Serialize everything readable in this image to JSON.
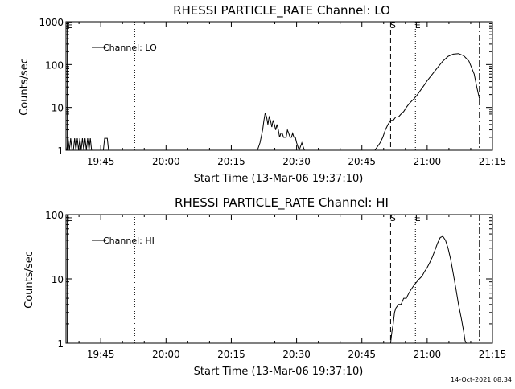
{
  "footer": {
    "timestamp": "14-Oct-2021 08:34"
  },
  "chart_data": [
    {
      "type": "line",
      "title": "RHESSI PARTICLE_RATE Channel: LO",
      "xlabel": "Start Time (13-Mar-06 19:37:10)",
      "ylabel": "Counts/sec",
      "x_unit": "minutes",
      "xlim": [
        19.617,
        21.25
      ],
      "yscale": "log",
      "ylim": [
        1,
        1000
      ],
      "x_ticks": [
        {
          "x": 19.75,
          "label": "19:45"
        },
        {
          "x": 20.0,
          "label": "20:00"
        },
        {
          "x": 20.25,
          "label": "20:15"
        },
        {
          "x": 20.5,
          "label": "20:30"
        },
        {
          "x": 20.75,
          "label": "20:45"
        },
        {
          "x": 21.0,
          "label": "21:00"
        },
        {
          "x": 21.25,
          "label": "21:15"
        }
      ],
      "y_ticks": [
        {
          "y": 1,
          "label": "1"
        },
        {
          "y": 10,
          "label": "10"
        },
        {
          "y": 100,
          "label": "100"
        },
        {
          "y": 1000,
          "label": "1000"
        }
      ],
      "legend": {
        "label": "Channel: LO",
        "position": "top-left"
      },
      "markers": [
        {
          "x": 19.622,
          "style": "solid",
          "label": "E"
        },
        {
          "x": 19.88,
          "style": "dotted",
          "label": ""
        },
        {
          "x": 20.86,
          "style": "dashed",
          "label": "S"
        },
        {
          "x": 20.955,
          "style": "dotted",
          "label": "E"
        },
        {
          "x": 21.2,
          "style": "dashdot",
          "label": ""
        }
      ],
      "series": [
        {
          "name": "Channel: LO",
          "x": [
            19.62,
            19.625,
            19.63,
            19.635,
            19.64,
            19.645,
            19.65,
            19.655,
            19.66,
            19.665,
            19.67,
            19.675,
            19.68,
            19.685,
            19.69,
            19.695,
            19.7,
            19.705,
            19.71,
            19.715,
            19.72,
            19.74,
            19.76,
            19.765,
            19.77,
            19.775,
            19.78,
            19.8,
            19.9,
            20.0,
            20.1,
            20.2,
            20.35,
            20.36,
            20.37,
            20.375,
            20.38,
            20.385,
            20.39,
            20.395,
            20.4,
            20.405,
            20.41,
            20.415,
            20.42,
            20.425,
            20.43,
            20.435,
            20.44,
            20.445,
            20.45,
            20.455,
            20.46,
            20.465,
            20.47,
            20.475,
            20.48,
            20.485,
            20.49,
            20.495,
            20.5,
            20.51,
            20.52,
            20.53,
            20.6,
            20.7,
            20.8,
            20.82,
            20.83,
            20.84,
            20.85,
            20.86,
            20.87,
            20.88,
            20.89,
            20.9,
            20.91,
            20.92,
            20.93,
            20.94,
            20.95,
            20.96,
            20.97,
            20.98,
            20.99,
            21.0,
            21.02,
            21.04,
            21.06,
            21.08,
            21.1,
            21.12,
            21.14,
            21.16,
            21.18,
            21.19,
            21.2
          ],
          "y": [
            1,
            1.9,
            1,
            1.9,
            1,
            1,
            1.9,
            1,
            1.9,
            1,
            1.9,
            1,
            1.9,
            1,
            1.9,
            1,
            1.9,
            1,
            1.9,
            1,
            1,
            1,
            1,
            1.9,
            1.9,
            1.9,
            1,
            1,
            1,
            1,
            1,
            1,
            1,
            1.5,
            3,
            5,
            7.5,
            6,
            4,
            6,
            5,
            3.5,
            5,
            4,
            3,
            4,
            3,
            2,
            2.5,
            2.5,
            2,
            2,
            2,
            3,
            2.5,
            2,
            2,
            2.5,
            2,
            2,
            1.5,
            1,
            1.5,
            1,
            1,
            1,
            1,
            1.5,
            2,
            3,
            4,
            5,
            5,
            6,
            6,
            7,
            8,
            10,
            12,
            14,
            16,
            19,
            23,
            28,
            34,
            42,
            60,
            85,
            120,
            155,
            175,
            180,
            160,
            120,
            60,
            30,
            16
          ]
        }
      ]
    },
    {
      "type": "line",
      "title": "RHESSI PARTICLE_RATE Channel: HI",
      "xlabel": "Start Time (13-Mar-06 19:37:10)",
      "ylabel": "Counts/sec",
      "x_unit": "minutes",
      "xlim": [
        19.617,
        21.25
      ],
      "yscale": "log",
      "ylim": [
        1,
        100
      ],
      "x_ticks": [
        {
          "x": 19.75,
          "label": "19:45"
        },
        {
          "x": 20.0,
          "label": "20:00"
        },
        {
          "x": 20.25,
          "label": "20:15"
        },
        {
          "x": 20.5,
          "label": "20:30"
        },
        {
          "x": 20.75,
          "label": "20:45"
        },
        {
          "x": 21.0,
          "label": "21:00"
        },
        {
          "x": 21.25,
          "label": "21:15"
        }
      ],
      "y_ticks": [
        {
          "y": 1,
          "label": "1"
        },
        {
          "y": 10,
          "label": "10"
        },
        {
          "y": 100,
          "label": "100"
        }
      ],
      "legend": {
        "label": "Channel: HI",
        "position": "top-left"
      },
      "markers": [
        {
          "x": 19.622,
          "style": "solid",
          "label": "E"
        },
        {
          "x": 19.88,
          "style": "dotted",
          "label": ""
        },
        {
          "x": 20.86,
          "style": "dashed",
          "label": "S"
        },
        {
          "x": 20.955,
          "style": "dotted",
          "label": "E"
        },
        {
          "x": 21.2,
          "style": "dashdot",
          "label": ""
        }
      ],
      "series": [
        {
          "name": "Channel: HI",
          "x": [
            20.86,
            20.865,
            20.87,
            20.875,
            20.88,
            20.89,
            20.9,
            20.91,
            20.92,
            20.93,
            20.94,
            20.95,
            20.96,
            20.97,
            20.98,
            20.99,
            21.0,
            21.01,
            21.02,
            21.03,
            21.04,
            21.05,
            21.06,
            21.07,
            21.08,
            21.09,
            21.1,
            21.11,
            21.12,
            21.13,
            21.14,
            21.145,
            21.15
          ],
          "y": [
            1,
            1.5,
            2,
            3,
            3.5,
            4,
            4,
            5,
            5,
            6,
            7,
            8,
            9,
            10,
            11,
            13,
            15,
            18,
            22,
            28,
            36,
            44,
            46,
            40,
            30,
            20,
            12,
            7,
            4,
            2.5,
            1.5,
            1.1,
            1
          ]
        }
      ]
    }
  ]
}
